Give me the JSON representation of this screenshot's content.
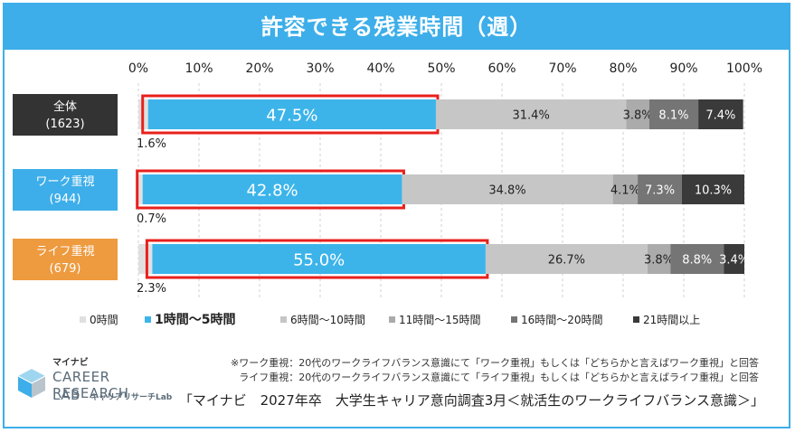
{
  "title": "許容できる残業時間（週）",
  "chart_data": {
    "type": "bar",
    "orientation": "horizontal",
    "stacked": true,
    "xlim": [
      0,
      100
    ],
    "ticks": [
      "0%",
      "10%",
      "20%",
      "30%",
      "40%",
      "50%",
      "60%",
      "70%",
      "80%",
      "90%",
      "100%"
    ],
    "categories": [
      {
        "label": "全体",
        "n": "(1623)",
        "color": "#333333"
      },
      {
        "label": "ワーク重視",
        "n": "(944)",
        "color": "#3daee9"
      },
      {
        "label": "ライフ重視",
        "n": "(679)",
        "color": "#ee9a3f"
      }
    ],
    "series": [
      {
        "name": "0時間",
        "color": "#e0e0e0",
        "values": [
          1.6,
          0.7,
          2.3
        ],
        "labels": [
          "1.6%",
          "0.7%",
          "2.3%"
        ]
      },
      {
        "name": "1時間〜5時間",
        "color": "#3cb4ea",
        "values": [
          47.5,
          42.8,
          55.0
        ],
        "labels": [
          "47.5%",
          "42.8%",
          "55.0%"
        ],
        "highlight": true
      },
      {
        "name": "6時間〜10時間",
        "color": "#c6c6c6",
        "values": [
          31.4,
          34.8,
          26.7
        ],
        "labels": [
          "31.4%",
          "34.8%",
          "26.7%"
        ]
      },
      {
        "name": "11時間〜15時間",
        "color": "#ababab",
        "values": [
          3.8,
          4.1,
          3.8
        ],
        "labels": [
          "3.8%",
          "4.1%",
          "3.8%"
        ]
      },
      {
        "name": "16時間〜20時間",
        "color": "#757575",
        "values": [
          8.1,
          7.3,
          8.8
        ],
        "labels": [
          "8.1%",
          "7.3%",
          "8.8%"
        ]
      },
      {
        "name": "21時間以上",
        "color": "#3a3a3a",
        "values": [
          7.4,
          10.3,
          3.4
        ],
        "labels": [
          "7.4%",
          "10.3%",
          "3.4%"
        ]
      }
    ],
    "highlight_color": "#e8201c"
  },
  "notes": [
    "※ワーク重視：20代のワークライフバランス意識にて「ワーク重視」もしくは「どちらかと言えばワーク重視」と回答",
    "ライフ重視：20代のワークライフバランス意識にて「ライフ重視」もしくは「どちらかと言えばライフ重視」と回答"
  ],
  "source": "「マイナビ　2027年卒　大学生キャリア意向調査3月＜就活生のワークライフバランス意識＞」",
  "logo": {
    "small": "マイナビ",
    "line1": "CAREER RESEARCH",
    "line2": "LAB",
    "sub": "キャリアリサーチLab"
  }
}
